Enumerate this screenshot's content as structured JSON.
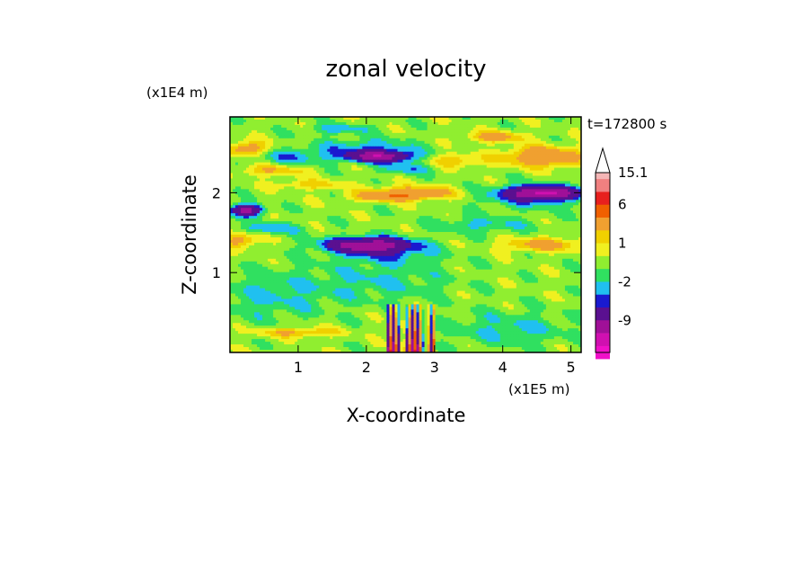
{
  "chart_data": {
    "type": "heatmap",
    "title": "zonal velocity",
    "xlabel": "X-coordinate",
    "ylabel": "Z-coordinate",
    "x_unit": "(x1E5 m)",
    "y_unit": "(x1E4 m)",
    "time_label": "t=172800 s",
    "xlim": [
      0,
      5.15
    ],
    "ylim": [
      0,
      2.95
    ],
    "x_ticks": [
      1,
      2,
      3,
      4,
      5
    ],
    "y_ticks": [
      1,
      2
    ],
    "x_tick_labels": [
      "1",
      "2",
      "3",
      "4",
      "5"
    ],
    "y_tick_labels": [
      "1",
      "2"
    ],
    "background_value": 0.5,
    "colorbar": {
      "levels_top_to_bottom": [
        15.1,
        12,
        9,
        6,
        3,
        2,
        1,
        0,
        -1,
        -2,
        -3,
        -6,
        -9,
        -12,
        -15.1
      ],
      "colors_top_to_bottom": [
        "#f4b6b6",
        "#f08080",
        "#e8201e",
        "#f06000",
        "#f0a030",
        "#f0d000",
        "#f0f020",
        "#90ee30",
        "#30e060",
        "#20c0f0",
        "#1a1ad0",
        "#5a1090",
        "#a01098",
        "#d010b0",
        "#f010c8"
      ],
      "labels": [
        "15.1",
        "6",
        "1",
        "-2",
        "-9"
      ],
      "label_levels": [
        15.1,
        6,
        1,
        -2,
        -9
      ],
      "top_arrow_color": "#ffffff"
    },
    "colors": [
      "#f010c8",
      "#d010b0",
      "#a01098",
      "#5a1090",
      "#1a1ad0",
      "#20c0f0",
      "#30e060",
      "#90ee30",
      "#f0f020",
      "#f0d000",
      "#f0a030",
      "#f06000",
      "#e8201e",
      "#f08080",
      "#f4b6b6"
    ],
    "thresholds": [
      -12,
      -9,
      -6,
      -3,
      -2,
      -1,
      0,
      1,
      2,
      3,
      6,
      9,
      12,
      15.1
    ],
    "features": [
      {
        "x": 0.25,
        "z": 2.55,
        "wx": 0.3,
        "wz": 0.09,
        "v": 4.0
      },
      {
        "x": 0.9,
        "z": 2.45,
        "wx": 0.55,
        "wz": 0.1,
        "v": -2.2
      },
      {
        "x": 0.6,
        "z": 2.28,
        "wx": 0.5,
        "wz": 0.07,
        "v": 2.5
      },
      {
        "x": 0.25,
        "z": 1.78,
        "wx": 0.22,
        "wz": 0.07,
        "v": -8.0
      },
      {
        "x": 0.6,
        "z": 1.55,
        "wx": 0.45,
        "wz": 0.07,
        "v": -2.3
      },
      {
        "x": 0.15,
        "z": 1.4,
        "wx": 0.25,
        "wz": 0.09,
        "v": 3.5
      },
      {
        "x": 2.2,
        "z": 2.45,
        "wx": 0.45,
        "wz": 0.07,
        "v": -8.0
      },
      {
        "x": 2.0,
        "z": 2.55,
        "wx": 0.7,
        "wz": 0.12,
        "v": -2.5
      },
      {
        "x": 2.6,
        "z": 2.3,
        "wx": 0.4,
        "wz": 0.07,
        "v": -2.2
      },
      {
        "x": 2.7,
        "z": 2.0,
        "wx": 0.6,
        "wz": 0.08,
        "v": 4.0
      },
      {
        "x": 2.3,
        "z": 1.95,
        "wx": 0.5,
        "wz": 0.06,
        "v": 3.5
      },
      {
        "x": 2.0,
        "z": 1.35,
        "wx": 0.6,
        "wz": 0.09,
        "v": -8.0
      },
      {
        "x": 2.3,
        "z": 1.25,
        "wx": 0.7,
        "wz": 0.13,
        "v": -2.5
      },
      {
        "x": 1.6,
        "z": 2.8,
        "wx": 0.45,
        "wz": 0.06,
        "v": -2.2
      },
      {
        "x": 4.6,
        "z": 2.0,
        "wx": 0.5,
        "wz": 0.08,
        "v": -8.5
      },
      {
        "x": 4.45,
        "z": 1.95,
        "wx": 0.75,
        "wz": 0.14,
        "v": -2.5
      },
      {
        "x": 4.6,
        "z": 2.45,
        "wx": 0.55,
        "wz": 0.12,
        "v": 5.0
      },
      {
        "x": 3.9,
        "z": 2.7,
        "wx": 0.4,
        "wz": 0.07,
        "v": 3.5
      },
      {
        "x": 4.6,
        "z": 1.35,
        "wx": 0.6,
        "wz": 0.08,
        "v": 3.5
      },
      {
        "x": 3.7,
        "z": 1.6,
        "wx": 0.7,
        "wz": 0.1,
        "v": -1.8
      },
      {
        "x": 0.6,
        "z": 0.7,
        "wx": 0.9,
        "wz": 0.3,
        "v": -1.6
      },
      {
        "x": 2.2,
        "z": 0.9,
        "wx": 1.0,
        "wz": 0.25,
        "v": -1.5
      },
      {
        "x": 4.1,
        "z": 0.3,
        "wx": 0.9,
        "wz": 0.2,
        "v": -1.7
      },
      {
        "x": 1.0,
        "z": 0.25,
        "wx": 0.6,
        "wz": 0.06,
        "v": 3.0
      },
      {
        "x": 3.3,
        "z": 2.4,
        "wx": 0.4,
        "wz": 0.08,
        "v": 2.5
      },
      {
        "x": 1.2,
        "z": 2.1,
        "wx": 0.5,
        "wz": 0.06,
        "v": 2.2
      }
    ]
  }
}
